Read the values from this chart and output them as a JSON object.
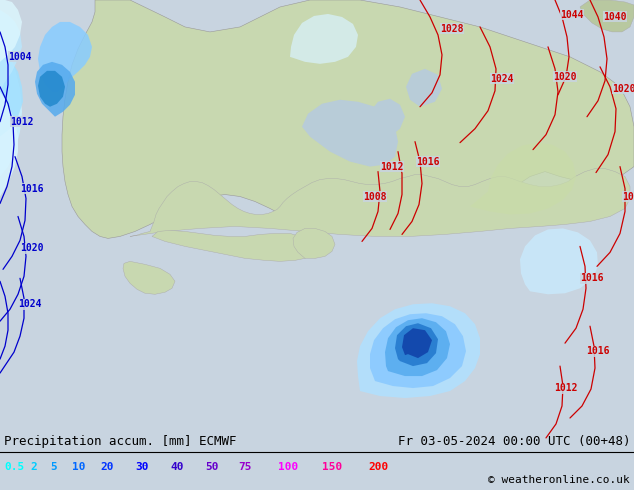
{
  "title_left": "Precipitation accum. [mm] ECMWF",
  "title_right": "Fr 03-05-2024 00:00 UTC (00+48)",
  "credit": "© weatheronline.co.uk",
  "legend_values": [
    "0.5",
    "2",
    "5",
    "10",
    "20",
    "30",
    "40",
    "50",
    "75",
    "100",
    "150",
    "200"
  ],
  "legend_colors": [
    "#00ffff",
    "#00ccff",
    "#0099ff",
    "#0066ff",
    "#0033ff",
    "#0000ff",
    "#3300cc",
    "#6600cc",
    "#9900cc",
    "#ff00ff",
    "#ff0099",
    "#ff0000"
  ],
  "ocean_color": "#b8ccd8",
  "land_color": "#c8d8b0",
  "land_color2": "#b8c8a0",
  "bg_color": "#c8d4e0",
  "title_fontsize": 9,
  "legend_fontsize": 8,
  "credit_fontsize": 8,
  "isobar_red": "#cc0000",
  "isobar_blue": "#0000cc",
  "isobar_fontsize": 7,
  "isobar_lw": 0.9
}
